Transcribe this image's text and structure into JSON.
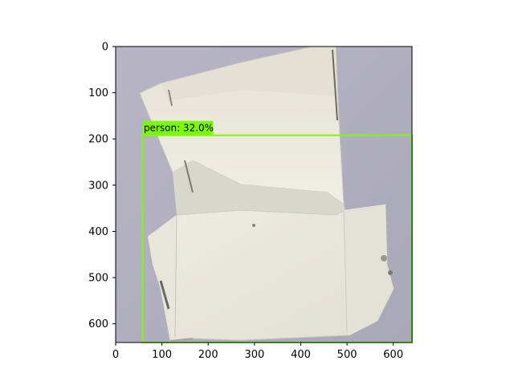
{
  "image": {
    "subject": "crumpled white folded cardboard box on pale lavender-gray background",
    "background_color": "#b4b2c4",
    "cardboard_color": "#e9e6dc"
  },
  "axes": {
    "x_ticks": [
      "0",
      "100",
      "200",
      "300",
      "400",
      "500",
      "600"
    ],
    "y_ticks": [
      "0",
      "100",
      "200",
      "300",
      "400",
      "500",
      "600"
    ]
  },
  "detection": {
    "label": "person: 32.0%",
    "class": "person",
    "score": 32.0,
    "box": {
      "x_min": 58,
      "y_min": 192,
      "x_max": 640,
      "y_max": 640
    },
    "color": "#7cfc00"
  },
  "chart_data": {
    "type": "image",
    "xlim": [
      0,
      640
    ],
    "ylim": [
      640,
      0
    ],
    "x_ticks": [
      0,
      100,
      200,
      300,
      400,
      500,
      600
    ],
    "y_ticks": [
      0,
      100,
      200,
      300,
      400,
      500,
      600
    ]
  }
}
